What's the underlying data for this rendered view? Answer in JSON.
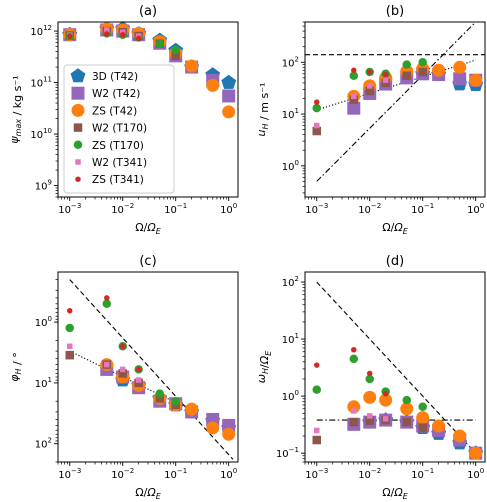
{
  "legend": {
    "entries": [
      {
        "label": "3D (T42)",
        "marker": "pentagon",
        "color": "#1f77b4",
        "size": "large"
      },
      {
        "label": "W2 (T42)",
        "marker": "square",
        "color": "#9467bd",
        "size": "large"
      },
      {
        "label": "ZS (T42)",
        "marker": "circle",
        "color": "#ff7f0e",
        "size": "large"
      },
      {
        "label": "W2 (T170)",
        "marker": "square",
        "color": "#8c564b",
        "size": "medium"
      },
      {
        "label": "ZS (T170)",
        "marker": "circle",
        "color": "#2ca02c",
        "size": "medium"
      },
      {
        "label": "W2 (T341)",
        "marker": "square",
        "color": "#e377c2",
        "size": "small"
      },
      {
        "label": "ZS (T341)",
        "marker": "circle",
        "color": "#d62728",
        "size": "small"
      }
    ]
  },
  "chart_data": [
    {
      "type": "scatter",
      "title": "(a)",
      "xlabel": "Ω/Ω_E",
      "ylabel": "ψ_max / kg s⁻¹",
      "xscale": "log",
      "yscale": "log",
      "xlim": [
        0.0006,
        1.5
      ],
      "ylim": [
        600000000.0,
        1500000000000.0
      ],
      "y_inverted": false,
      "xticks": [
        {
          "v": 0.001,
          "base": "10",
          "exp": "−3"
        },
        {
          "v": 0.01,
          "base": "10",
          "exp": "−2"
        },
        {
          "v": 0.1,
          "base": "10",
          "exp": "−1"
        },
        {
          "v": 1,
          "base": "10",
          "exp": "0"
        }
      ],
      "yticks": [
        {
          "v": 1000000000.0,
          "base": "10",
          "exp": "9"
        },
        {
          "v": 10000000000.0,
          "base": "10",
          "exp": "10"
        },
        {
          "v": 100000000000.0,
          "base": "10",
          "exp": "11"
        },
        {
          "v": 1000000000000.0,
          "base": "10",
          "exp": "12"
        }
      ],
      "legend": "left",
      "series": [
        {
          "series": 0,
          "x": [
            0.001,
            0.005,
            0.01,
            0.02,
            0.05,
            0.1,
            0.2,
            0.5,
            1.0
          ],
          "y": [
            850000000000.0,
            1100000000000.0,
            1100000000000.0,
            880000000000.0,
            660000000000.0,
            420000000000.0,
            200000000000.0,
            140000000000.0,
            100000000000.0
          ]
        },
        {
          "series": 1,
          "x": [
            0.001,
            0.005,
            0.01,
            0.02,
            0.05,
            0.1,
            0.2,
            0.5,
            1.0
          ],
          "y": [
            850000000000.0,
            1050000000000.0,
            1000000000000.0,
            850000000000.0,
            580000000000.0,
            330000000000.0,
            200000000000.0,
            110000000000.0,
            55000000000.0
          ]
        },
        {
          "series": 2,
          "x": [
            0.001,
            0.005,
            0.01,
            0.02,
            0.05,
            0.1,
            0.2,
            0.5,
            1.0
          ],
          "y": [
            850000000000.0,
            1100000000000.0,
            1050000000000.0,
            900000000000.0,
            620000000000.0,
            370000000000.0,
            210000000000.0,
            88000000000.0,
            27000000000.0
          ]
        },
        {
          "series": 3,
          "x": [
            0.001,
            0.005,
            0.01,
            0.02,
            0.05,
            0.1
          ],
          "y": [
            820000000000.0,
            1000000000000.0,
            950000000000.0,
            800000000000.0,
            570000000000.0,
            330000000000.0
          ]
        },
        {
          "series": 4,
          "x": [
            0.001,
            0.005,
            0.01,
            0.02,
            0.05,
            0.1
          ],
          "y": [
            800000000000.0,
            900000000000.0,
            850000000000.0,
            750000000000.0,
            560000000000.0,
            430000000000.0
          ]
        },
        {
          "series": 5,
          "x": [
            0.001,
            0.005,
            0.01,
            0.02
          ],
          "y": [
            830000000000.0,
            1050000000000.0,
            950000000000.0,
            800000000000.0
          ]
        },
        {
          "series": 6,
          "x": [
            0.001,
            0.005,
            0.01,
            0.02
          ],
          "y": [
            800000000000.0,
            880000000000.0,
            850000000000.0,
            720000000000.0
          ]
        }
      ],
      "lines": []
    },
    {
      "type": "scatter",
      "title": "(b)",
      "xlabel": "Ω/Ω_E",
      "ylabel": "u_H / m s⁻¹",
      "xscale": "log",
      "yscale": "log",
      "xlim": [
        0.0006,
        1.5
      ],
      "ylim": [
        0.25,
        600
      ],
      "y_inverted": false,
      "xticks": [
        {
          "v": 0.001,
          "base": "10",
          "exp": "−3"
        },
        {
          "v": 0.01,
          "base": "10",
          "exp": "−2"
        },
        {
          "v": 0.1,
          "base": "10",
          "exp": "−1"
        },
        {
          "v": 1,
          "base": "10",
          "exp": "0"
        }
      ],
      "yticks": [
        {
          "v": 1,
          "base": "10",
          "exp": "0"
        },
        {
          "v": 10,
          "base": "10",
          "exp": "1"
        },
        {
          "v": 100,
          "base": "10",
          "exp": "2"
        }
      ],
      "series": [
        {
          "series": 0,
          "x": [
            0.1,
            0.2,
            0.5,
            1.0
          ],
          "y": [
            60,
            58,
            38,
            37
          ]
        },
        {
          "series": 1,
          "x": [
            0.005,
            0.01,
            0.02,
            0.05,
            0.1,
            0.2,
            0.5,
            1.0
          ],
          "y": [
            13,
            25,
            38,
            50,
            60,
            58,
            48,
            45
          ]
        },
        {
          "series": 2,
          "x": [
            0.005,
            0.01,
            0.02,
            0.05,
            0.1,
            0.2,
            0.5,
            1.0
          ],
          "y": [
            22,
            35,
            50,
            67,
            75,
            70,
            80,
            45
          ]
        },
        {
          "series": 3,
          "x": [
            0.001,
            0.005,
            0.01,
            0.02,
            0.05,
            0.1
          ],
          "y": [
            4.7,
            19,
            28,
            40,
            55,
            65
          ]
        },
        {
          "series": 4,
          "x": [
            0.001,
            0.005,
            0.01,
            0.02,
            0.05,
            0.1
          ],
          "y": [
            13,
            55,
            65,
            60,
            90,
            100
          ]
        },
        {
          "series": 5,
          "x": [
            0.001,
            0.005,
            0.01,
            0.02
          ],
          "y": [
            6,
            22,
            35,
            45
          ]
        },
        {
          "series": 6,
          "x": [
            0.001,
            0.005,
            0.01,
            0.02
          ],
          "y": [
            17,
            70,
            65,
            58
          ]
        }
      ],
      "lines": [
        {
          "style": "dashed",
          "x": [
            0.0006,
            1.5
          ],
          "y": [
            140,
            140
          ]
        },
        {
          "style": "dashdot",
          "x": [
            0.001,
            1.0
          ],
          "y": [
            0.5,
            600
          ]
        },
        {
          "style": "dotted",
          "x": [
            0.001,
            1.0
          ],
          "y": [
            12,
            110
          ]
        }
      ]
    },
    {
      "type": "scatter",
      "title": "(c)",
      "xlabel": "Ω/Ω_E",
      "ylabel": "φ_H / °",
      "xscale": "log",
      "yscale": "log",
      "xlim": [
        0.0006,
        1.5
      ],
      "ylim": [
        0.15,
        200
      ],
      "y_inverted": true,
      "xticks": [
        {
          "v": 0.001,
          "base": "10",
          "exp": "−3"
        },
        {
          "v": 0.01,
          "base": "10",
          "exp": "−2"
        },
        {
          "v": 0.1,
          "base": "10",
          "exp": "−1"
        },
        {
          "v": 1,
          "base": "10",
          "exp": "0"
        }
      ],
      "yticks": [
        {
          "v": 1,
          "base": "10",
          "exp": "0"
        },
        {
          "v": 10,
          "base": "10",
          "exp": "1"
        },
        {
          "v": 100,
          "base": "10",
          "exp": "2"
        }
      ],
      "series": [
        {
          "series": 0,
          "x": [
            0.01,
            0.02,
            0.05,
            0.1,
            0.2,
            0.5,
            1.0
          ],
          "y": [
            9,
            11,
            18,
            23,
            30,
            42,
            55
          ]
        },
        {
          "series": 1,
          "x": [
            0.005,
            0.01,
            0.02,
            0.05,
            0.1,
            0.2,
            0.5,
            1.0
          ],
          "y": [
            6,
            8,
            12,
            20,
            22,
            30,
            40,
            50
          ]
        },
        {
          "series": 2,
          "x": [
            0.005,
            0.01,
            0.02,
            0.05,
            0.1,
            0.2,
            0.5,
            1.0
          ],
          "y": [
            5,
            8,
            11,
            18,
            23,
            27,
            55,
            70
          ]
        },
        {
          "series": 3,
          "x": [
            0.001,
            0.005,
            0.01,
            0.02,
            0.05,
            0.1
          ],
          "y": [
            3.5,
            5,
            7,
            10,
            18,
            23
          ]
        },
        {
          "series": 4,
          "x": [
            0.001,
            0.005,
            0.01,
            0.02,
            0.05,
            0.1
          ],
          "y": [
            1.25,
            0.5,
            2.5,
            6,
            15,
            20
          ]
        },
        {
          "series": 5,
          "x": [
            0.001,
            0.005,
            0.01,
            0.02
          ],
          "y": [
            2.5,
            5,
            6,
            9
          ]
        },
        {
          "series": 6,
          "x": [
            0.001,
            0.005,
            0.01,
            0.02
          ],
          "y": [
            0.65,
            0.4,
            2.5,
            6
          ]
        }
      ],
      "lines": [
        {
          "style": "dashed",
          "x": [
            0.001,
            1.2
          ],
          "y": [
            0.2,
            180
          ]
        },
        {
          "style": "dotted",
          "x": [
            0.001,
            0.15
          ],
          "y": [
            3,
            25
          ]
        }
      ]
    },
    {
      "type": "scatter",
      "title": "(d)",
      "xlabel": "Ω/Ω_E",
      "ylabel": "ω_H/Ω_E",
      "xscale": "log",
      "yscale": "log",
      "xlim": [
        0.0006,
        1.5
      ],
      "ylim": [
        0.07,
        150
      ],
      "y_inverted": false,
      "xticks": [
        {
          "v": 0.001,
          "base": "10",
          "exp": "−3"
        },
        {
          "v": 0.01,
          "base": "10",
          "exp": "−2"
        },
        {
          "v": 0.1,
          "base": "10",
          "exp": "−1"
        },
        {
          "v": 1,
          "base": "10",
          "exp": "0"
        }
      ],
      "yticks": [
        {
          "v": 0.1,
          "base": "10",
          "exp": "−1"
        },
        {
          "v": 1,
          "base": "10",
          "exp": "0"
        },
        {
          "v": 10,
          "base": "10",
          "exp": "1"
        },
        {
          "v": 100,
          "base": "10",
          "exp": "2"
        }
      ],
      "series": [
        {
          "series": 0,
          "x": [
            0.01,
            0.02,
            0.05,
            0.1,
            0.2,
            0.5,
            1.0
          ],
          "y": [
            0.35,
            0.38,
            0.35,
            0.28,
            0.22,
            0.15,
            0.1
          ]
        },
        {
          "series": 1,
          "x": [
            0.005,
            0.01,
            0.02,
            0.05,
            0.1,
            0.2,
            0.5,
            1.0
          ],
          "y": [
            0.32,
            0.35,
            0.38,
            0.35,
            0.3,
            0.25,
            0.17,
            0.1
          ]
        },
        {
          "series": 2,
          "x": [
            0.005,
            0.01,
            0.02,
            0.05,
            0.1,
            0.2,
            0.5,
            1.0
          ],
          "y": [
            0.65,
            0.95,
            0.85,
            0.6,
            0.42,
            0.3,
            0.2,
            0.1
          ]
        },
        {
          "series": 3,
          "x": [
            0.001,
            0.005,
            0.01,
            0.02,
            0.05,
            0.1
          ],
          "y": [
            0.17,
            0.35,
            0.37,
            0.38,
            0.35,
            0.28
          ]
        },
        {
          "series": 4,
          "x": [
            0.001,
            0.005,
            0.01,
            0.02,
            0.05,
            0.1
          ],
          "y": [
            1.3,
            4.5,
            2.0,
            1.2,
            0.85,
            0.65
          ]
        },
        {
          "series": 5,
          "x": [
            0.001,
            0.005,
            0.01,
            0.02
          ],
          "y": [
            0.25,
            0.55,
            0.45,
            0.4
          ]
        },
        {
          "series": 6,
          "x": [
            0.001,
            0.005,
            0.01,
            0.02
          ],
          "y": [
            3.5,
            6.5,
            2.5,
            1.1
          ]
        }
      ],
      "lines": [
        {
          "style": "dashed",
          "x": [
            0.001,
            1.0
          ],
          "y": [
            100,
            0.1
          ]
        },
        {
          "style": "dashdot",
          "x": [
            0.001,
            1.0
          ],
          "y": [
            0.38,
            0.38
          ]
        }
      ]
    }
  ]
}
